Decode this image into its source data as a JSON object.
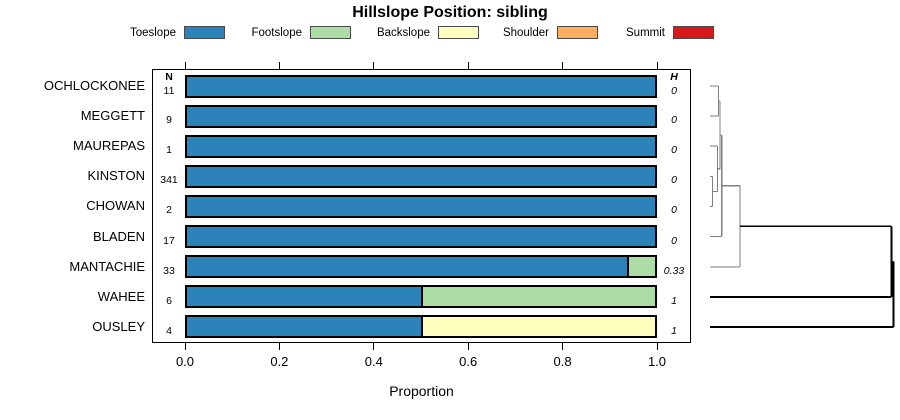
{
  "chart": {
    "title": "Hillslope Position: sibling",
    "xlabel": "Proportion",
    "n_header": "N",
    "h_header": "H"
  },
  "legend": {
    "position": "top-center",
    "items": [
      {
        "label": "Toeslope",
        "color": "#2B83BA"
      },
      {
        "label": "Footslope",
        "color": "#ABDDA4"
      },
      {
        "label": "Backslope",
        "color": "#FFFFBF"
      },
      {
        "label": "Shoulder",
        "color": "#FDAE61"
      },
      {
        "label": "Summit",
        "color": "#D7191C"
      }
    ]
  },
  "chart_data": {
    "type": "bar",
    "subtype": "horizontal-stacked-proportions-with-dendrogram",
    "title": "Hillslope Position: sibling",
    "xlabel": "Proportion",
    "xlim": [
      0,
      1
    ],
    "x_ticks": [
      "0.0",
      "0.2",
      "0.4",
      "0.6",
      "0.8",
      "1.0"
    ],
    "grid": false,
    "categories": [
      "OCHLOCKONEE",
      "MEGGETT",
      "MAUREPAS",
      "KINSTON",
      "CHOWAN",
      "BLADEN",
      "MANTACHIE",
      "WAHEE",
      "OUSLEY"
    ],
    "sample_size_N": [
      11,
      9,
      1,
      341,
      2,
      17,
      33,
      6,
      4
    ],
    "shannon_entropy_H": [
      "0",
      "0",
      "0",
      "0",
      "0",
      "0",
      "0.33",
      "1",
      "1"
    ],
    "series": [
      {
        "name": "Toeslope",
        "color": "#2B83BA",
        "values": [
          1,
          1,
          1,
          1,
          1,
          1,
          0.94,
          0.5,
          0.5
        ]
      },
      {
        "name": "Footslope",
        "color": "#ABDDA4",
        "values": [
          0,
          0,
          0,
          0,
          0,
          0,
          0.06,
          0.5,
          0
        ]
      },
      {
        "name": "Backslope",
        "color": "#FFFFBF",
        "values": [
          0,
          0,
          0,
          0,
          0,
          0,
          0,
          0,
          0.5
        ]
      },
      {
        "name": "Shoulder",
        "color": "#FDAE61",
        "values": [
          0,
          0,
          0,
          0,
          0,
          0,
          0,
          0,
          0
        ]
      },
      {
        "name": "Summit",
        "color": "#D7191C",
        "values": [
          0,
          0,
          0,
          0,
          0,
          0,
          0,
          0,
          0
        ]
      }
    ],
    "dendrogram": {
      "structure": "((((OCHLOCKONEE,MEGGETT),(MAUREPAS,(KINSTON,CHOWAN))),BLADEN),MANTACHIE) then +WAHEE then +OUSLEY at max distance",
      "gray_segments": [
        [
          710,
          86,
          718.5,
          86
        ],
        [
          710,
          116,
          718.5,
          116
        ],
        [
          718.5,
          86,
          718.5,
          116
        ],
        [
          718.5,
          101,
          720,
          101
        ],
        [
          710,
          146,
          717.5,
          146
        ],
        [
          710,
          176.5,
          712.5,
          176.5
        ],
        [
          710,
          206.5,
          712.5,
          206.5
        ],
        [
          712.5,
          176.5,
          712.5,
          206.5
        ],
        [
          712.5,
          191.5,
          717.5,
          191.5
        ],
        [
          717.5,
          146,
          717.5,
          191.5
        ],
        [
          717.5,
          168.8,
          720,
          168.8
        ],
        [
          720,
          101,
          720,
          168.8
        ],
        [
          720,
          134.9,
          721.7,
          134.9
        ],
        [
          710,
          236.5,
          721.7,
          236.5
        ],
        [
          721.7,
          134.9,
          721.7,
          236.5
        ],
        [
          721.7,
          185.7,
          740,
          185.7
        ],
        [
          710,
          267,
          740,
          267
        ],
        [
          740,
          185.7,
          740,
          267
        ]
      ],
      "black_segments": [
        [
          740,
          226.4,
          891.5,
          226.4
        ],
        [
          710,
          297,
          891.5,
          297
        ],
        [
          891.5,
          226.4,
          891.5,
          297
        ],
        [
          891.5,
          261.7,
          893.5,
          261.7
        ],
        [
          710,
          327,
          893.5,
          327
        ],
        [
          893.5,
          261.7,
          893.5,
          327
        ]
      ]
    }
  }
}
